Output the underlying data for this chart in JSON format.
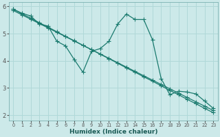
{
  "xlabel": "Humidex (Indice chaleur)",
  "background_color": "#cce9e9",
  "grid_color": "#b0d8d8",
  "line_color": "#1a7a6e",
  "xmin": -0.5,
  "xmax": 23.5,
  "ymin": 1.8,
  "ymax": 6.15,
  "yticks": [
    2,
    3,
    4,
    5,
    6
  ],
  "xticks": [
    0,
    1,
    2,
    3,
    4,
    5,
    6,
    7,
    8,
    9,
    10,
    11,
    12,
    13,
    14,
    15,
    16,
    17,
    18,
    19,
    20,
    21,
    22,
    23
  ],
  "line_straight1_x": [
    0,
    1,
    2,
    3,
    4,
    5,
    6,
    7,
    8,
    9,
    10,
    11,
    12,
    13,
    14,
    15,
    16,
    17,
    18,
    19,
    20,
    21,
    22,
    23
  ],
  "line_straight1_y": [
    5.9,
    5.73,
    5.57,
    5.4,
    5.24,
    5.07,
    4.9,
    4.74,
    4.57,
    4.41,
    4.24,
    4.08,
    3.91,
    3.74,
    3.58,
    3.41,
    3.25,
    3.08,
    2.91,
    2.75,
    2.58,
    2.42,
    2.25,
    2.09
  ],
  "line_straight2_x": [
    0,
    1,
    2,
    3,
    4,
    5,
    6,
    7,
    8,
    9,
    10,
    11,
    12,
    13,
    14,
    15,
    16,
    17,
    18,
    19,
    20,
    21,
    22,
    23
  ],
  "line_straight2_y": [
    5.85,
    5.69,
    5.53,
    5.37,
    5.21,
    5.05,
    4.89,
    4.73,
    4.57,
    4.41,
    4.25,
    4.09,
    3.93,
    3.77,
    3.61,
    3.45,
    3.29,
    3.13,
    2.97,
    2.81,
    2.65,
    2.49,
    2.33,
    2.17
  ],
  "line_wavy_x": [
    0,
    1,
    2,
    3,
    4,
    5,
    6,
    7,
    8,
    9,
    10,
    11,
    12,
    13,
    14,
    15,
    16,
    17,
    18,
    19,
    20,
    21,
    22,
    23
  ],
  "line_wavy_y": [
    5.9,
    5.75,
    5.65,
    5.35,
    5.28,
    4.72,
    4.55,
    4.05,
    3.58,
    4.35,
    4.45,
    4.72,
    5.35,
    5.72,
    5.52,
    5.52,
    4.78,
    3.35,
    2.75,
    2.88,
    2.85,
    2.78,
    2.52,
    2.25
  ]
}
